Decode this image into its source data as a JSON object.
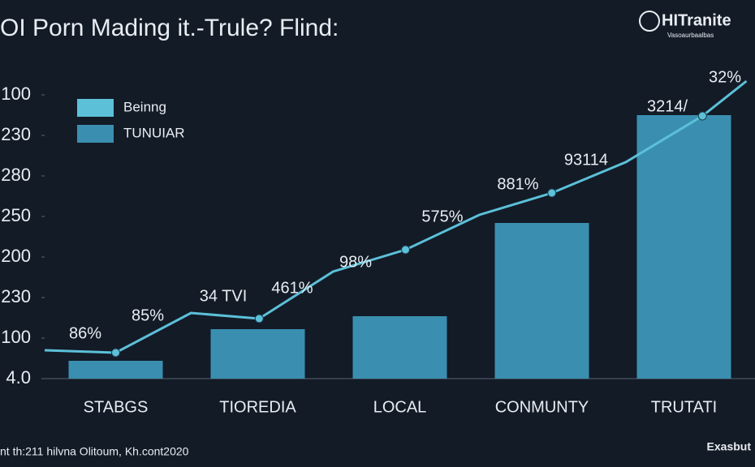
{
  "chart_data": {
    "type": "bar",
    "title": "OI Porn Mading it.-Trule? Flind:",
    "logo": "HITranite",
    "logo_subtitle": "Vasoaurbaalbas",
    "footer_left": "nt th:211 hilvna Olitoum, Kh.cont2020",
    "footer_right": "Exasbut",
    "categories": [
      "STABGS",
      "TIOREDIA",
      "LOCAL",
      "CONMUNTY",
      "TRUTATI"
    ],
    "ylim": [
      0,
      7.4
    ],
    "yticks": [
      {
        "value": 0,
        "label": "4.0"
      },
      {
        "value": 1,
        "label": "100"
      },
      {
        "value": 2,
        "label": "230"
      },
      {
        "value": 3,
        "label": "200"
      },
      {
        "value": 4,
        "label": "250"
      },
      {
        "value": 5,
        "label": "280"
      },
      {
        "value": 6,
        "label": "230"
      },
      {
        "value": 7,
        "label": "100"
      }
    ],
    "series": [
      {
        "name": "Beinng",
        "color": "#5cc0d8",
        "type": "line",
        "x": [
          -0.5,
          0,
          0.53,
          1.01,
          1.53,
          2.04,
          2.56,
          3.07,
          3.59,
          4.13,
          4.44
        ],
        "values": [
          0.7,
          0.64,
          1.62,
          1.48,
          2.64,
          3.18,
          4.04,
          4.58,
          5.34,
          6.48,
          7.34
        ]
      },
      {
        "name": "TUNUIAR",
        "color": "#3a8fb0",
        "type": "bar",
        "values": [
          0.44,
          1.22,
          1.54,
          3.84,
          6.5
        ]
      }
    ],
    "annotations": [
      "86%",
      "85%",
      "34 TVI",
      "461%",
      "98%",
      "575%",
      "881%",
      "93114",
      "3214/",
      "32%"
    ],
    "legend": "upper left"
  }
}
